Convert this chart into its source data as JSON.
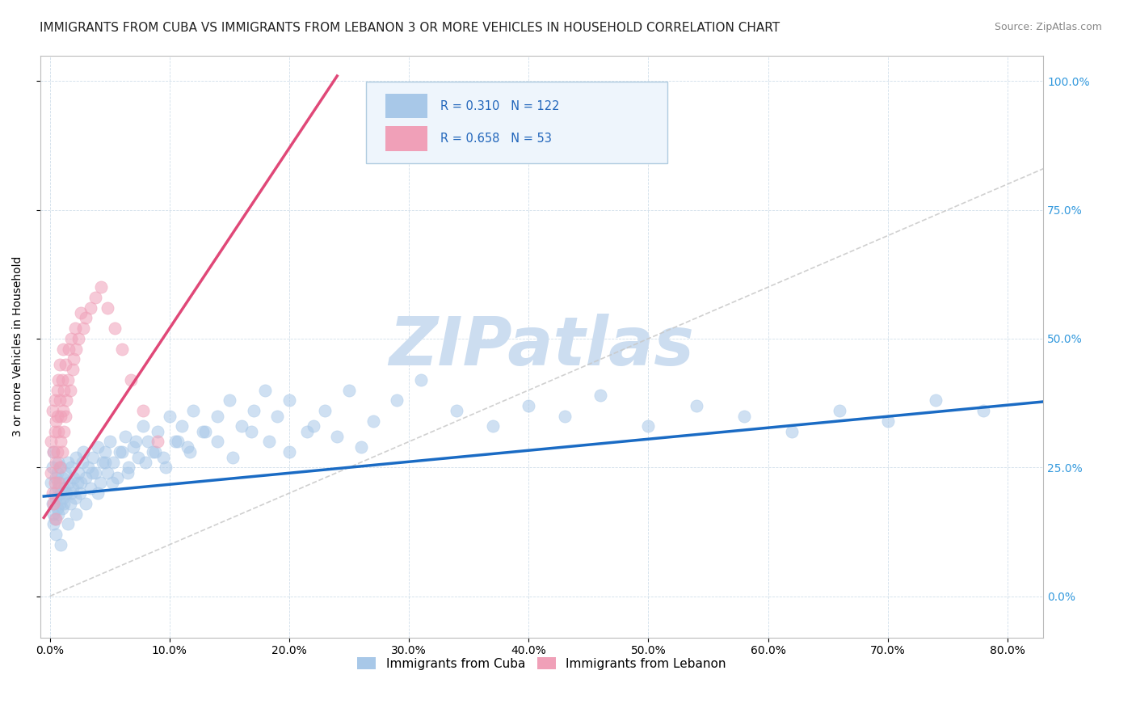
{
  "title": "IMMIGRANTS FROM CUBA VS IMMIGRANTS FROM LEBANON 3 OR MORE VEHICLES IN HOUSEHOLD CORRELATION CHART",
  "source": "Source: ZipAtlas.com",
  "ylabel": "3 or more Vehicles in Household",
  "yticks": [
    "0.0%",
    "25.0%",
    "50.0%",
    "75.0%",
    "100.0%"
  ],
  "ytick_vals": [
    0.0,
    0.25,
    0.5,
    0.75,
    1.0
  ],
  "xlim": [
    -0.008,
    0.83
  ],
  "ylim": [
    -0.08,
    1.05
  ],
  "cuba_R": 0.31,
  "cuba_N": 122,
  "lebanon_R": 0.658,
  "lebanon_N": 53,
  "cuba_color": "#a8c8e8",
  "lebanon_color": "#f0a0b8",
  "cuba_line_color": "#1a6bc4",
  "lebanon_line_color": "#e04878",
  "ref_line_color": "#c8c8c8",
  "watermark": "ZIPatlas",
  "watermark_color": "#ccddf0",
  "title_fontsize": 11,
  "scatter_size": 120,
  "scatter_alpha": 0.55,
  "legend_facecolor": "#eef5fc",
  "legend_edgecolor": "#b0cce0",
  "cuba_line_intercept": 0.195,
  "cuba_line_slope": 0.22,
  "lebanon_line_intercept": 0.17,
  "lebanon_line_slope": 3.5,
  "cuba_x": [
    0.001,
    0.002,
    0.002,
    0.003,
    0.003,
    0.004,
    0.004,
    0.005,
    0.005,
    0.006,
    0.006,
    0.007,
    0.007,
    0.008,
    0.008,
    0.009,
    0.009,
    0.01,
    0.01,
    0.011,
    0.012,
    0.013,
    0.014,
    0.015,
    0.016,
    0.017,
    0.018,
    0.019,
    0.02,
    0.021,
    0.022,
    0.023,
    0.024,
    0.025,
    0.027,
    0.028,
    0.03,
    0.032,
    0.034,
    0.036,
    0.038,
    0.04,
    0.042,
    0.044,
    0.046,
    0.048,
    0.05,
    0.053,
    0.056,
    0.06,
    0.063,
    0.066,
    0.07,
    0.074,
    0.078,
    0.082,
    0.086,
    0.09,
    0.095,
    0.1,
    0.105,
    0.11,
    0.115,
    0.12,
    0.13,
    0.14,
    0.15,
    0.16,
    0.17,
    0.18,
    0.19,
    0.2,
    0.215,
    0.23,
    0.25,
    0.27,
    0.29,
    0.31,
    0.34,
    0.37,
    0.4,
    0.43,
    0.46,
    0.5,
    0.54,
    0.58,
    0.62,
    0.66,
    0.7,
    0.74,
    0.78,
    0.003,
    0.005,
    0.007,
    0.009,
    0.012,
    0.015,
    0.018,
    0.022,
    0.026,
    0.03,
    0.035,
    0.04,
    0.046,
    0.052,
    0.058,
    0.065,
    0.072,
    0.08,
    0.088,
    0.097,
    0.107,
    0.117,
    0.128,
    0.14,
    0.153,
    0.168,
    0.183,
    0.2,
    0.22,
    0.24,
    0.26
  ],
  "cuba_y": [
    0.22,
    0.18,
    0.25,
    0.16,
    0.28,
    0.2,
    0.15,
    0.23,
    0.19,
    0.17,
    0.24,
    0.21,
    0.26,
    0.18,
    0.22,
    0.2,
    0.25,
    0.17,
    0.23,
    0.19,
    0.21,
    0.24,
    0.2,
    0.26,
    0.22,
    0.18,
    0.25,
    0.21,
    0.23,
    0.19,
    0.27,
    0.22,
    0.24,
    0.2,
    0.26,
    0.28,
    0.23,
    0.25,
    0.21,
    0.27,
    0.24,
    0.29,
    0.22,
    0.26,
    0.28,
    0.24,
    0.3,
    0.26,
    0.23,
    0.28,
    0.31,
    0.25,
    0.29,
    0.27,
    0.33,
    0.3,
    0.28,
    0.32,
    0.27,
    0.35,
    0.3,
    0.33,
    0.29,
    0.36,
    0.32,
    0.35,
    0.38,
    0.33,
    0.36,
    0.4,
    0.35,
    0.38,
    0.32,
    0.36,
    0.4,
    0.34,
    0.38,
    0.42,
    0.36,
    0.33,
    0.37,
    0.35,
    0.39,
    0.33,
    0.37,
    0.35,
    0.32,
    0.36,
    0.34,
    0.38,
    0.36,
    0.14,
    0.12,
    0.16,
    0.1,
    0.18,
    0.14,
    0.2,
    0.16,
    0.22,
    0.18,
    0.24,
    0.2,
    0.26,
    0.22,
    0.28,
    0.24,
    0.3,
    0.26,
    0.28,
    0.25,
    0.3,
    0.28,
    0.32,
    0.3,
    0.27,
    0.32,
    0.3,
    0.28,
    0.33,
    0.31,
    0.29
  ],
  "lebanon_x": [
    0.001,
    0.001,
    0.002,
    0.002,
    0.003,
    0.003,
    0.004,
    0.004,
    0.004,
    0.005,
    0.005,
    0.005,
    0.006,
    0.006,
    0.006,
    0.007,
    0.007,
    0.007,
    0.008,
    0.008,
    0.008,
    0.009,
    0.009,
    0.01,
    0.01,
    0.011,
    0.011,
    0.012,
    0.012,
    0.013,
    0.013,
    0.014,
    0.015,
    0.016,
    0.017,
    0.018,
    0.019,
    0.02,
    0.021,
    0.022,
    0.024,
    0.026,
    0.028,
    0.03,
    0.034,
    0.038,
    0.043,
    0.048,
    0.054,
    0.06,
    0.068,
    0.078,
    0.09
  ],
  "lebanon_y": [
    0.24,
    0.3,
    0.2,
    0.36,
    0.18,
    0.28,
    0.32,
    0.22,
    0.38,
    0.26,
    0.34,
    0.15,
    0.4,
    0.28,
    0.35,
    0.22,
    0.42,
    0.32,
    0.25,
    0.38,
    0.45,
    0.3,
    0.35,
    0.28,
    0.42,
    0.36,
    0.48,
    0.32,
    0.4,
    0.35,
    0.45,
    0.38,
    0.42,
    0.48,
    0.4,
    0.5,
    0.44,
    0.46,
    0.52,
    0.48,
    0.5,
    0.55,
    0.52,
    0.54,
    0.56,
    0.58,
    0.6,
    0.56,
    0.52,
    0.48,
    0.42,
    0.36,
    0.3
  ]
}
